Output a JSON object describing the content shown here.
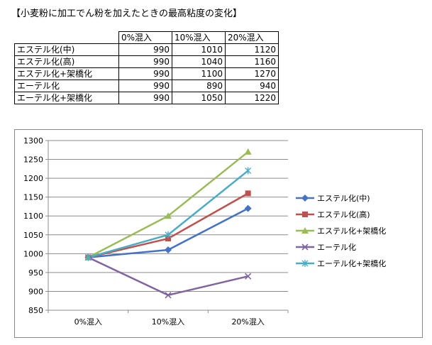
{
  "title": "【小麦粉に加工でん粉を加えたときの最高粘度の変化】",
  "table": {
    "headers": [
      "0%混入",
      "10%混入",
      "20%混入"
    ],
    "rows": [
      {
        "label": "エステル化(中)",
        "values": [
          "990",
          "1010",
          "1120"
        ]
      },
      {
        "label": "エステル化(高)",
        "values": [
          "990",
          "1040",
          "1160"
        ]
      },
      {
        "label": "エステル化+架橋化",
        "values": [
          "990",
          "1100",
          "1270"
        ]
      },
      {
        "label": "エーテル化",
        "values": [
          "990",
          "890",
          "940"
        ]
      },
      {
        "label": "エーテル化+架橋化",
        "values": [
          "990",
          "1050",
          "1220"
        ]
      }
    ]
  },
  "chart_data": {
    "type": "line",
    "title": "",
    "xlabel": "",
    "ylabel": "",
    "categories": [
      "0%混入",
      "10%混入",
      "20%混入"
    ],
    "ylim": [
      850,
      1300
    ],
    "ytick_step": 50,
    "grid": true,
    "legend_position": "right",
    "series": [
      {
        "name": "エステル化(中)",
        "values": [
          990,
          1010,
          1120
        ],
        "color": "#4472C4",
        "marker": "diamond"
      },
      {
        "name": "エステル化(高)",
        "values": [
          990,
          1040,
          1160
        ],
        "color": "#C0504D",
        "marker": "square"
      },
      {
        "name": "エステル化+架橋化",
        "values": [
          990,
          1100,
          1270
        ],
        "color": "#9BBB59",
        "marker": "triangle"
      },
      {
        "name": "エーテル化",
        "values": [
          990,
          890,
          940
        ],
        "color": "#8064A2",
        "marker": "x"
      },
      {
        "name": "エーテル化+架橋化",
        "values": [
          990,
          1050,
          1220
        ],
        "color": "#4BACC6",
        "marker": "star"
      }
    ]
  }
}
